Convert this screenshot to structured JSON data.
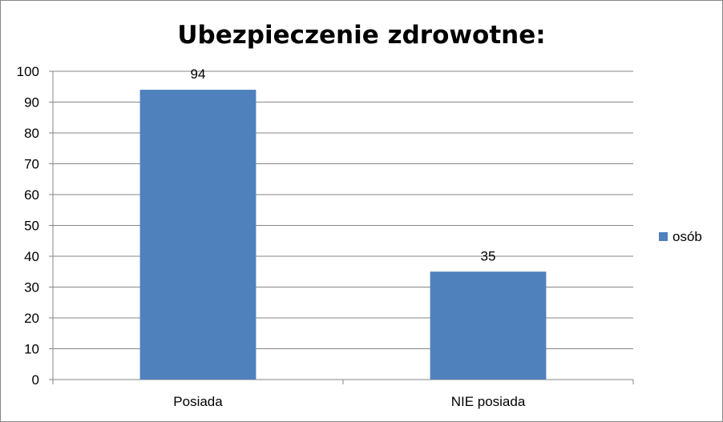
{
  "chart_data": {
    "type": "bar",
    "title": "Ubezpieczenie zdrowotne:",
    "categories": [
      "Posiada",
      "NIE posiada"
    ],
    "series": [
      {
        "name": "osób",
        "values": [
          94,
          35
        ],
        "color": "#4F81BD"
      }
    ],
    "ylim": [
      0,
      100
    ],
    "yticks": [
      0,
      10,
      20,
      30,
      40,
      50,
      60,
      70,
      80,
      90,
      100
    ],
    "grid": true,
    "data_labels": true,
    "legend_position": "right"
  }
}
